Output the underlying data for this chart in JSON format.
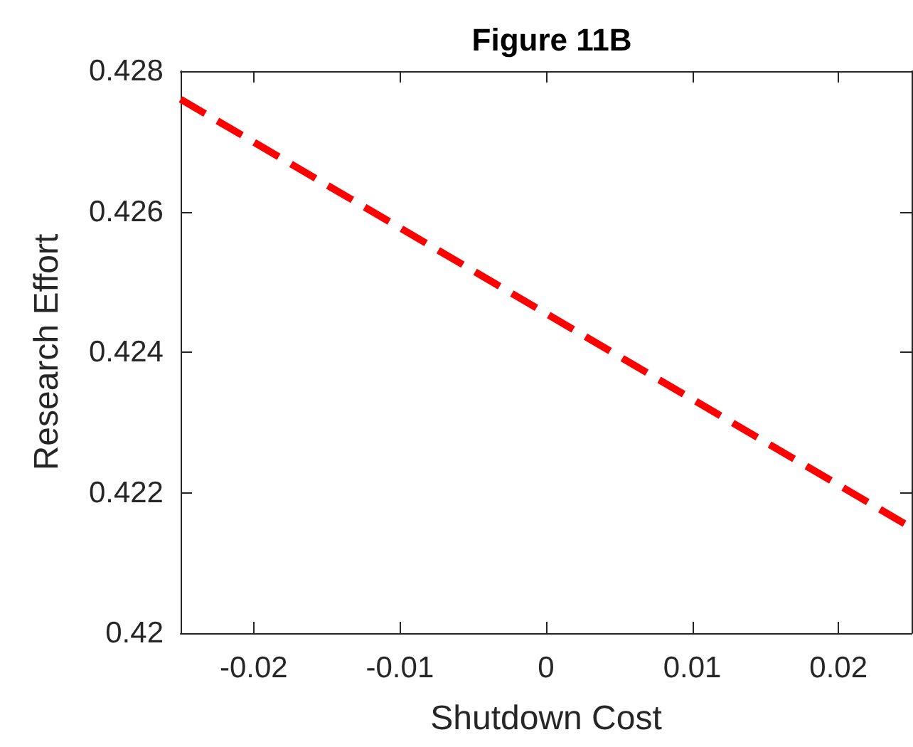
{
  "chart_data": {
    "type": "line",
    "title": "Figure 11B",
    "xlabel": "Shutdown Cost",
    "ylabel": "Research Effort",
    "series": [
      {
        "x": [
          -0.025,
          0.025
        ],
        "values": [
          0.4276,
          0.4215
        ],
        "color": "#ff0000"
      }
    ],
    "xlim": [
      -0.025,
      0.025
    ],
    "xticks": [
      -0.02,
      -0.01,
      0,
      0.01,
      0.02
    ],
    "ylim": [
      0.42,
      0.428
    ],
    "yticks": [
      0.42,
      0.422,
      0.424,
      0.426,
      0.428
    ],
    "grid": false,
    "marker": "none",
    "line_style": "dashed"
  }
}
